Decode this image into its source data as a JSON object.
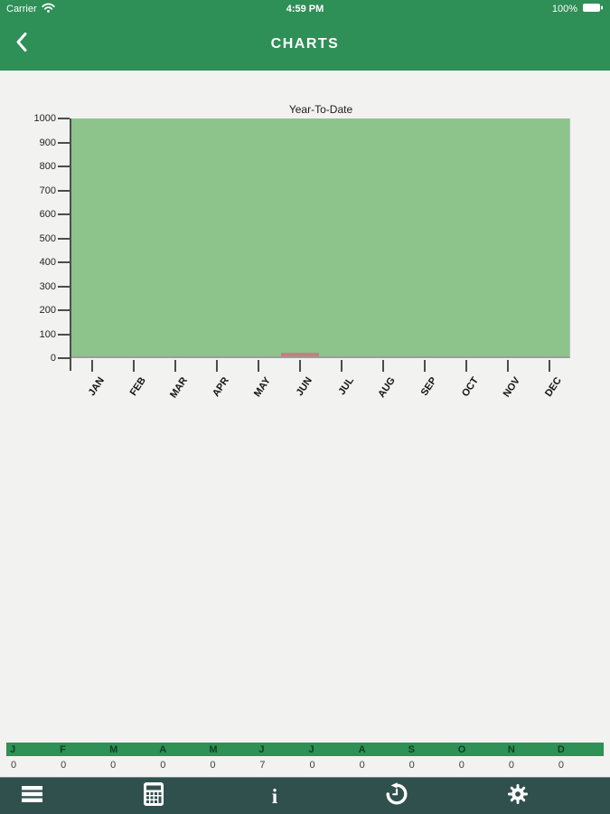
{
  "colors": {
    "header_green": "#2e8f57",
    "table_header_green": "#2e9155",
    "plot_green": "#8cc48c",
    "bar_pink": "#c87e7e",
    "toolbar_teal": "#30504e",
    "page_bg": "#f2f2f1"
  },
  "status_bar": {
    "carrier": "Carrier",
    "wifi_icon": "wifi-icon",
    "time": "4:59 PM",
    "battery_percent": "100%",
    "battery_icon": "battery-icon"
  },
  "nav": {
    "back_icon": "chevron-left-icon",
    "title": "CHARTS"
  },
  "chart_data": {
    "type": "bar",
    "title": "Year-To-Date",
    "categories": [
      "JAN",
      "FEB",
      "MAR",
      "APR",
      "MAY",
      "JUN",
      "JUL",
      "AUG",
      "SEP",
      "OCT",
      "NOV",
      "DEC"
    ],
    "values": [
      0,
      0,
      0,
      0,
      0,
      7,
      0,
      0,
      0,
      0,
      0,
      0
    ],
    "xlabel": "",
    "ylabel": "",
    "ylim": [
      0,
      1000
    ],
    "yticks": [
      0,
      100,
      200,
      300,
      400,
      500,
      600,
      700,
      800,
      900,
      1000
    ],
    "grid": false,
    "legend": false,
    "plot_bg": "#8cc48c",
    "bar_color": "#c87e7e"
  },
  "month_table": {
    "headers": [
      "J",
      "F",
      "M",
      "A",
      "M",
      "J",
      "J",
      "A",
      "S",
      "O",
      "N",
      "D"
    ],
    "values": [
      "0",
      "0",
      "0",
      "0",
      "0",
      "7",
      "0",
      "0",
      "0",
      "0",
      "0",
      "0"
    ]
  },
  "toolbar": {
    "items": [
      {
        "name": "menu",
        "icon": "menu-icon"
      },
      {
        "name": "calculator",
        "icon": "calculator-icon"
      },
      {
        "name": "info",
        "icon": "info-icon"
      },
      {
        "name": "history",
        "icon": "history-icon"
      },
      {
        "name": "settings",
        "icon": "gear-icon"
      }
    ]
  }
}
